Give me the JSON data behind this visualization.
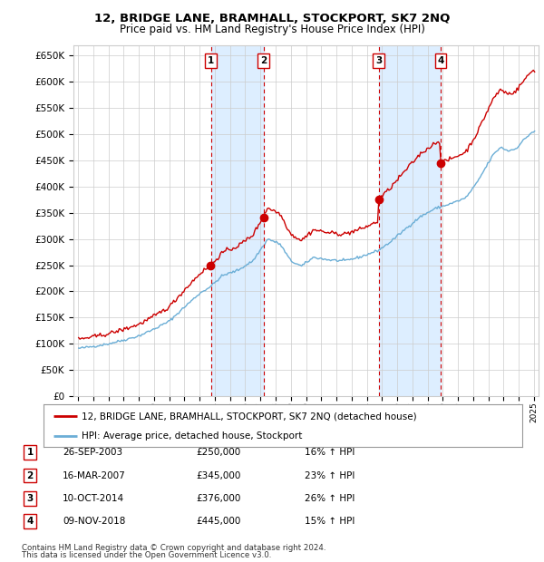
{
  "title": "12, BRIDGE LANE, BRAMHALL, STOCKPORT, SK7 2NQ",
  "subtitle": "Price paid vs. HM Land Registry's House Price Index (HPI)",
  "legend_line1": "12, BRIDGE LANE, BRAMHALL, STOCKPORT, SK7 2NQ (detached house)",
  "legend_line2": "HPI: Average price, detached house, Stockport",
  "footer1": "Contains HM Land Registry data © Crown copyright and database right 2024.",
  "footer2": "This data is licensed under the Open Government Licence v3.0.",
  "transaction_display": [
    {
      "num": 1,
      "date": "26-SEP-2003",
      "price": "£250,000",
      "pct_hpi": "16% ↑ HPI"
    },
    {
      "num": 2,
      "date": "16-MAR-2007",
      "price": "£345,000",
      "pct_hpi": "23% ↑ HPI"
    },
    {
      "num": 3,
      "date": "10-OCT-2014",
      "price": "£376,000",
      "pct_hpi": "26% ↑ HPI"
    },
    {
      "num": 4,
      "date": "09-NOV-2018",
      "price": "£445,000",
      "pct_hpi": "15% ↑ HPI"
    }
  ],
  "purchase_years": [
    2003.74,
    2007.21,
    2014.78,
    2018.86
  ],
  "purchase_prices": [
    250000,
    345000,
    376000,
    445000
  ],
  "hpi_color": "#6baed6",
  "price_color": "#cc0000",
  "dot_color": "#cc0000",
  "vline_color": "#cc0000",
  "shade_color": "#ddeeff",
  "grid_color": "#cccccc",
  "background_color": "#ffffff",
  "ylim": [
    0,
    670000
  ],
  "yticks": [
    0,
    50000,
    100000,
    150000,
    200000,
    250000,
    300000,
    350000,
    400000,
    450000,
    500000,
    550000,
    600000,
    650000
  ],
  "xstart_year": 1995,
  "xend_year": 2025
}
